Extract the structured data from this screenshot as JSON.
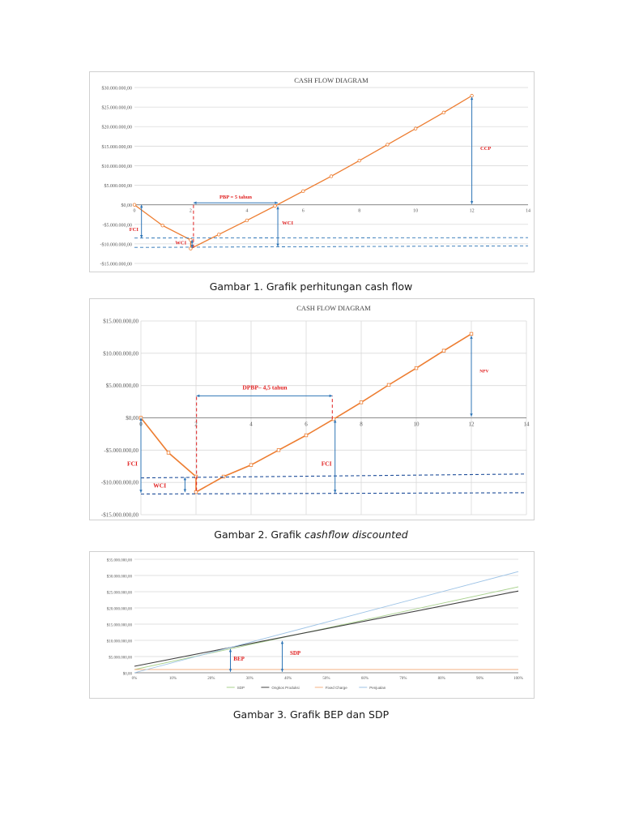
{
  "colors": {
    "orange": "#ED7D31",
    "blue": "#2E75B6",
    "annotation_red": "#E02020",
    "grid": "#D9D9D9",
    "axis_text": "#595959",
    "sdp_line": "#A9D18E",
    "ongkos_line": "#404040",
    "fixed_line": "#F4B183",
    "penjualan_line": "#9DC3E6"
  },
  "captions": {
    "fig1": "Gambar 1. Grafik perhitungan cash flow",
    "fig2_prefix": "Gambar 2. Grafik ",
    "fig2_italic": "cashflow discounted",
    "fig3": "Gambar 3. Grafik BEP dan SDP"
  },
  "chart_data": [
    {
      "type": "line",
      "title": "CASH FLOW DIAGRAM",
      "xlim": [
        0,
        14
      ],
      "ylim": [
        -15000000,
        30000000
      ],
      "x_ticks": [
        0,
        2,
        4,
        6,
        8,
        10,
        12,
        14
      ],
      "x_tick_labels": [
        "0",
        "2",
        "4",
        "6",
        "8",
        "10",
        "12",
        "14"
      ],
      "y_ticks": [
        -15000000,
        -10000000,
        -5000000,
        0,
        5000000,
        10000000,
        15000000,
        20000000,
        25000000,
        30000000
      ],
      "y_tick_labels": [
        "-$15.000.000,00",
        "-$10.000.000,00",
        "-$5.000.000,00",
        "$0,00",
        "$5.000.000,00",
        "$10.000.000,00",
        "$15.000.000,00",
        "$20.000.000,00",
        "$25.000.000,00",
        "$30.000.000,00"
      ],
      "grid": true,
      "series": [
        {
          "x": [
            0,
            1,
            2,
            2,
            3,
            4,
            5,
            6,
            7,
            8,
            9,
            10,
            11,
            12
          ],
          "values": [
            0,
            -5300000,
            -9000000,
            -11200000,
            -7600000,
            -4000000,
            -300000,
            3500000,
            7300000,
            11300000,
            15400000,
            19500000,
            23600000,
            27900000
          ]
        }
      ],
      "annotations": [
        "FCI",
        "WCI",
        "PBP = 5 tahun",
        "WCI",
        "CCP"
      ]
    },
    {
      "type": "line",
      "title": "CASH FLOW DIAGRAM",
      "xlim": [
        0,
        14
      ],
      "ylim": [
        -15000000,
        15000000
      ],
      "x_ticks": [
        0,
        2,
        4,
        6,
        8,
        10,
        12,
        14
      ],
      "x_tick_labels": [
        "0",
        "2",
        "4",
        "6",
        "8",
        "10",
        "12",
        "14"
      ],
      "y_ticks": [
        -15000000,
        -10000000,
        -5000000,
        0,
        5000000,
        10000000,
        15000000
      ],
      "y_tick_labels": [
        "-$15.000.000,00",
        "-$10.000.000,00",
        "-$5.000.000,00",
        "$0,00",
        "$5.000.000,00",
        "$10.000.000,00",
        "$15.000.000,00"
      ],
      "grid": true,
      "series": [
        {
          "x": [
            0,
            1,
            2,
            2,
            3,
            4,
            5,
            6,
            7,
            8,
            9,
            10,
            11,
            12
          ],
          "values": [
            0,
            -5400000,
            -9100000,
            -11500000,
            -9100000,
            -7300000,
            -5000000,
            -2700000,
            -200000,
            2400000,
            5100000,
            7700000,
            10400000,
            13000000
          ]
        }
      ],
      "annotations": [
        "DPBP– 4,5 tahun",
        "FCI",
        "WCI",
        "FCI",
        "NPV"
      ]
    },
    {
      "type": "line",
      "title": "",
      "xlim": [
        0,
        100
      ],
      "ylim": [
        0,
        35000000
      ],
      "x_ticks": [
        0,
        10,
        20,
        30,
        40,
        50,
        60,
        70,
        80,
        90,
        100
      ],
      "x_tick_labels": [
        "0%",
        "10%",
        "20%",
        "30%",
        "40%",
        "50%",
        "60%",
        "70%",
        "80%",
        "90%",
        "100%"
      ],
      "y_ticks": [
        0,
        5000000,
        10000000,
        15000000,
        20000000,
        25000000,
        30000000,
        35000000
      ],
      "y_tick_labels": [
        "$0,00",
        "$5.000.000,00",
        "$10.000.000,00",
        "$15.000.000,00",
        "$20.000.000,00",
        "$25.000.000,00",
        "$30.000.000,00",
        "$35.000.000,00"
      ],
      "grid": true,
      "legend": "bottom",
      "series": [
        {
          "name": "SDP",
          "x": [
            0,
            100
          ],
          "values": [
            1000000,
            26500000
          ]
        },
        {
          "name": "Ongkos Produksi",
          "x": [
            0,
            100
          ],
          "values": [
            2000000,
            25200000
          ]
        },
        {
          "name": "Fixed Charge",
          "x": [
            0,
            100
          ],
          "values": [
            1000000,
            1000000
          ]
        },
        {
          "name": "Penjualan",
          "x": [
            0,
            100
          ],
          "values": [
            0,
            31200000
          ]
        }
      ],
      "annotations": [
        "BEP",
        "SDP"
      ]
    }
  ]
}
